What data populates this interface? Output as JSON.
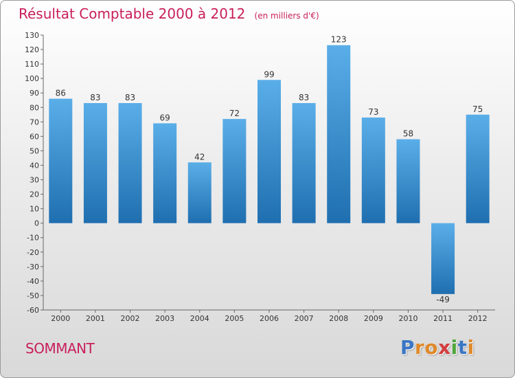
{
  "header": {
    "title": "Résultat Comptable 2000 à 2012",
    "subtitle": "(en milliers d'€)"
  },
  "footer": {
    "commune": "SOMMANT",
    "logo": {
      "text": "Proxiti",
      "letters": [
        "P",
        "r",
        "o",
        "x",
        "i",
        "t",
        "i"
      ],
      "colors": [
        "#3a76c4",
        "#e0892a",
        "#e0892a",
        "#d43d3d",
        "#4ea63a",
        "#3a76c4",
        "#e0892a"
      ]
    }
  },
  "chart_data": {
    "type": "bar",
    "title": "Résultat Comptable 2000 à 2012",
    "subtitle": "(en milliers d'€)",
    "xlabel": "",
    "ylabel": "",
    "categories": [
      "2000",
      "2001",
      "2002",
      "2003",
      "2004",
      "2005",
      "2006",
      "2007",
      "2008",
      "2009",
      "2010",
      "2011",
      "2012"
    ],
    "values": [
      86,
      83,
      83,
      69,
      42,
      72,
      99,
      83,
      123,
      73,
      58,
      -49,
      75
    ],
    "ylim": [
      -60,
      130
    ],
    "ytick_step": 10,
    "grid": false,
    "colors": {
      "bar_top": "#5aaee8",
      "bar_bottom": "#1f6fb0",
      "axis": "#666666"
    }
  }
}
